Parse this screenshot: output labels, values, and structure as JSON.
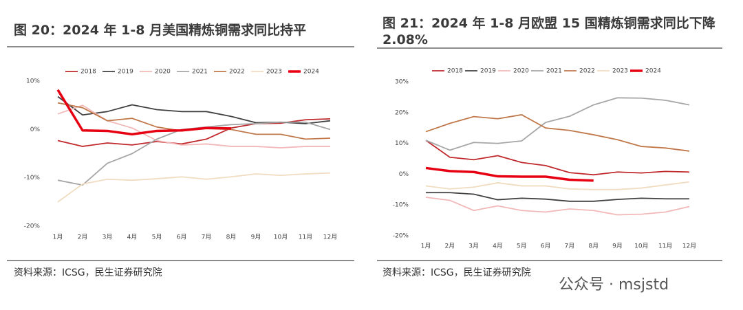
{
  "chart_data": [
    {
      "type": "line",
      "title": "图 20：2024 年 1-8 月美国精炼铜需求同比持平",
      "source": "资料来源：ICSG，民生证券研究院",
      "categories": [
        "1月",
        "2月",
        "3月",
        "4月",
        "5月",
        "6月",
        "7月",
        "8月",
        "9月",
        "10月",
        "11月",
        "12月"
      ],
      "ylim": [
        -20,
        10
      ],
      "yticks": [
        {
          "value": 10,
          "label": "10%"
        },
        {
          "value": 0,
          "label": "0%"
        },
        {
          "value": -10,
          "label": "-10%"
        },
        {
          "value": -20,
          "label": "-20%"
        }
      ],
      "legend": "top",
      "grid": false,
      "series": [
        {
          "name": "2018",
          "color": "#c0282b",
          "linewidth": 1.8,
          "values": [
            -2.3,
            -3.5,
            -2.8,
            -3.2,
            -2.5,
            -3.0,
            -2.0,
            0.3,
            1.2,
            1.3,
            2.0,
            2.2
          ]
        },
        {
          "name": "2019",
          "color": "#404040",
          "linewidth": 1.8,
          "values": [
            6.8,
            3.0,
            3.7,
            5.1,
            4.1,
            3.7,
            3.7,
            2.7,
            1.4,
            1.5,
            1.2,
            1.8
          ]
        },
        {
          "name": "2020",
          "color": "#f2b8b8",
          "linewidth": 1.8,
          "values": [
            3.2,
            5.0,
            1.8,
            0.3,
            -2.3,
            -3.2,
            -3.0,
            -3.5,
            -3.5,
            -3.8,
            -3.5,
            -3.5
          ]
        },
        {
          "name": "2021",
          "color": "#a6a6a6",
          "linewidth": 1.8,
          "values": [
            -10.5,
            -11.5,
            -7.0,
            -5.0,
            -2.0,
            0.0,
            0.5,
            1.0,
            1.2,
            1.5,
            1.5,
            0.0
          ]
        },
        {
          "name": "2022",
          "color": "#c0784a",
          "linewidth": 1.8,
          "values": [
            5.5,
            4.5,
            1.8,
            2.3,
            0.5,
            -0.3,
            0.2,
            0.0,
            -1.0,
            -1.0,
            -2.0,
            -1.8
          ]
        },
        {
          "name": "2023",
          "color": "#f0dcc0",
          "linewidth": 1.8,
          "values": [
            -15.0,
            -11.3,
            -10.3,
            -10.5,
            -10.2,
            -9.8,
            -10.3,
            -9.8,
            -9.2,
            -9.5,
            -9.2,
            -9.0
          ]
        },
        {
          "name": "2024",
          "color": "#e60012",
          "linewidth": 3.5,
          "values": [
            8.2,
            -0.2,
            -0.3,
            -1.0,
            -0.3,
            -0.2,
            0.3,
            0.2,
            null,
            null,
            null,
            null
          ]
        }
      ]
    },
    {
      "type": "line",
      "title": "图 21：2024 年 1-8 月欧盟 15 国精炼铜需求同比下降 2.08%",
      "source": "资料来源：ICSG，民生证券研究院",
      "watermark": "公众号 · msjstd",
      "categories": [
        "1月",
        "2月",
        "3月",
        "4月",
        "5月",
        "6月",
        "7月",
        "8月",
        "9月",
        "10月",
        "11月",
        "12月"
      ],
      "ylim": [
        -20,
        30
      ],
      "yticks": [
        {
          "value": 30,
          "label": "30%"
        },
        {
          "value": 20,
          "label": "20%"
        },
        {
          "value": 10,
          "label": "10%"
        },
        {
          "value": 0,
          "label": "0%"
        },
        {
          "value": -10,
          "label": "-10%"
        },
        {
          "value": -20,
          "label": "-20%"
        }
      ],
      "legend": "top",
      "grid": false,
      "series": [
        {
          "name": "2018",
          "color": "#c0282b",
          "linewidth": 1.8,
          "values": [
            11.0,
            5.5,
            4.7,
            6.0,
            3.8,
            2.8,
            0.5,
            -0.2,
            0.7,
            0.4,
            0.9,
            0.7
          ]
        },
        {
          "name": "2019",
          "color": "#404040",
          "linewidth": 1.8,
          "values": [
            -6.0,
            -6.0,
            -6.5,
            -8.3,
            -7.8,
            -8.1,
            -8.8,
            -8.8,
            -8.2,
            -7.8,
            -8.0,
            -8.0
          ]
        },
        {
          "name": "2020",
          "color": "#f2b8b8",
          "linewidth": 1.8,
          "values": [
            -7.5,
            -8.5,
            -11.8,
            -10.3,
            -11.8,
            -12.3,
            -11.3,
            -11.8,
            -13.2,
            -13.0,
            -12.3,
            -10.5
          ]
        },
        {
          "name": "2021",
          "color": "#a6a6a6",
          "linewidth": 1.8,
          "values": [
            11.0,
            7.8,
            10.3,
            10.0,
            10.8,
            16.8,
            18.8,
            22.5,
            24.8,
            24.7,
            24.0,
            22.5
          ]
        },
        {
          "name": "2022",
          "color": "#c0784a",
          "linewidth": 1.8,
          "values": [
            13.8,
            16.5,
            18.7,
            18.0,
            19.3,
            15.0,
            14.2,
            12.8,
            11.2,
            9.0,
            8.5,
            7.5
          ]
        },
        {
          "name": "2023",
          "color": "#f0dcc0",
          "linewidth": 1.8,
          "values": [
            -3.8,
            -4.8,
            -4.2,
            -2.8,
            -3.8,
            -3.8,
            -4.8,
            -5.0,
            -5.0,
            -4.5,
            -3.5,
            -2.5
          ]
        },
        {
          "name": "2024",
          "color": "#e60012",
          "linewidth": 3.5,
          "values": [
            2.0,
            1.0,
            0.7,
            -0.7,
            -0.8,
            -0.8,
            -1.8,
            -2.1,
            null,
            null,
            null,
            null
          ]
        }
      ]
    }
  ]
}
